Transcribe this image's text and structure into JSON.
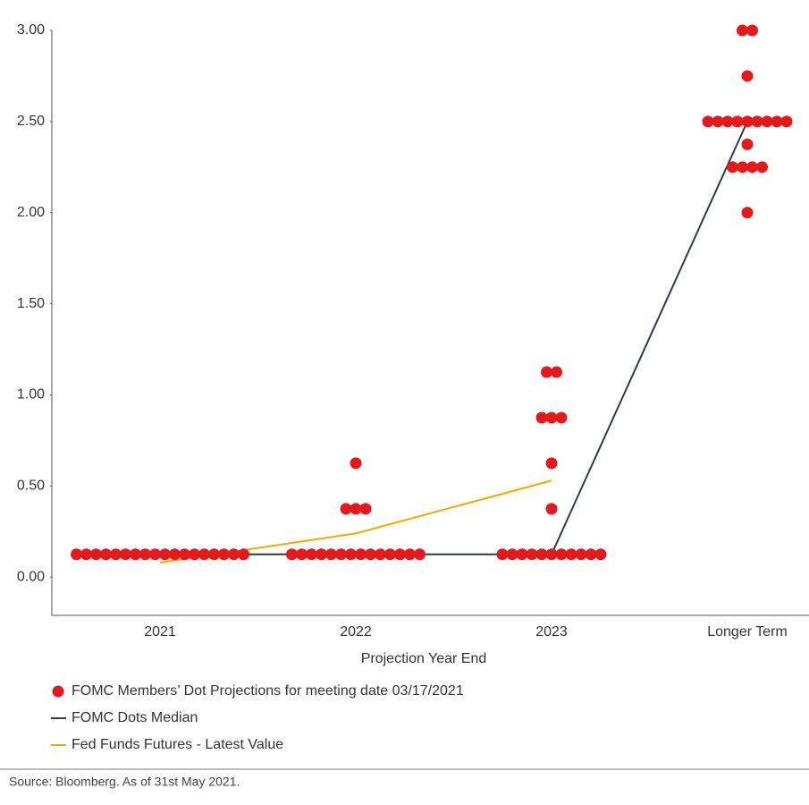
{
  "chart_data": {
    "type": "dot-plot",
    "x_label": "Projection Year End",
    "source": "Source: Bloomberg. As of 31st May 2021.",
    "categories": [
      "2021",
      "2022",
      "2023",
      "Longer Term"
    ],
    "ylim": [
      -0.2,
      3.0
    ],
    "yticks": [
      {
        "value": 0,
        "label": "0.00"
      },
      {
        "value": 0.5,
        "label": "0.50"
      },
      {
        "value": 1,
        "label": "1.00"
      },
      {
        "value": 1.5,
        "label": "1.50"
      },
      {
        "value": 2,
        "label": "2.00"
      },
      {
        "value": 2.5,
        "label": "2.50"
      },
      {
        "value": 3,
        "label": "3.00"
      }
    ],
    "series": [
      {
        "name": "FOMC Members’ Dot Projections for meeting date 03/17/2021",
        "type": "dots",
        "color": "#e3191c",
        "values": [
          [
            0.125,
            0.125,
            0.125,
            0.125,
            0.125,
            0.125,
            0.125,
            0.125,
            0.125,
            0.125,
            0.125,
            0.125,
            0.125,
            0.125,
            0.125,
            0.125,
            0.125,
            0.125
          ],
          [
            0.125,
            0.125,
            0.125,
            0.125,
            0.125,
            0.125,
            0.125,
            0.125,
            0.125,
            0.125,
            0.125,
            0.125,
            0.125,
            0.125,
            0.375,
            0.375,
            0.375,
            0.625
          ],
          [
            0.125,
            0.125,
            0.125,
            0.125,
            0.125,
            0.125,
            0.125,
            0.125,
            0.125,
            0.125,
            0.125,
            0.375,
            0.625,
            0.875,
            0.875,
            0.875,
            1.125,
            1.125
          ],
          [
            2.0,
            2.25,
            2.25,
            2.25,
            2.25,
            2.375,
            2.5,
            2.5,
            2.5,
            2.5,
            2.5,
            2.5,
            2.5,
            2.5,
            2.5,
            2.75,
            3.0,
            3.0
          ]
        ]
      },
      {
        "name": "FOMC Dots Median",
        "type": "line",
        "color": "#2f3b4c",
        "values": [
          0.125,
          0.125,
          0.125,
          2.5
        ]
      },
      {
        "name": "Fed Funds Futures - Latest Value",
        "type": "line",
        "color": "#f5a800",
        "values": [
          0.08,
          0.24,
          0.53,
          null
        ]
      }
    ]
  }
}
